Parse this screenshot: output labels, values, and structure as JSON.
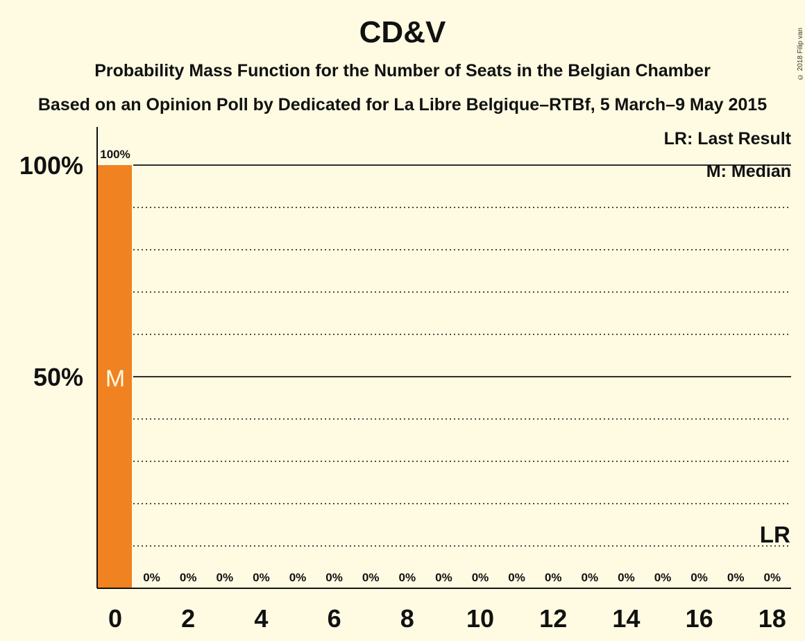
{
  "header": {
    "title": "CD&V",
    "subtitle1": "Probability Mass Function for the Number of Seats in the Belgian Chamber",
    "subtitle2": "Based on an Opinion Poll by Dedicated for La Libre Belgique–RTBf, 5 March–9 May 2015",
    "copyright": "© 2018 Filip van Laenen"
  },
  "legend": {
    "last_result": "LR: Last Result",
    "median": "M: Median"
  },
  "colors": {
    "bar": "#F08221",
    "background": "#FEFBE2"
  },
  "chart_data": {
    "type": "bar",
    "x": [
      0,
      1,
      2,
      3,
      4,
      5,
      6,
      7,
      8,
      9,
      10,
      11,
      12,
      13,
      14,
      15,
      16,
      17,
      18
    ],
    "values": [
      100,
      0,
      0,
      0,
      0,
      0,
      0,
      0,
      0,
      0,
      0,
      0,
      0,
      0,
      0,
      0,
      0,
      0,
      0
    ],
    "value_labels": [
      "100%",
      "0%",
      "0%",
      "0%",
      "0%",
      "0%",
      "0%",
      "0%",
      "0%",
      "0%",
      "0%",
      "0%",
      "0%",
      "0%",
      "0%",
      "0%",
      "0%",
      "0%",
      "0%"
    ],
    "x_tick_labels": [
      "0",
      "2",
      "4",
      "6",
      "8",
      "10",
      "12",
      "14",
      "16",
      "18"
    ],
    "x_ticks": [
      0,
      2,
      4,
      6,
      8,
      10,
      12,
      14,
      16,
      18
    ],
    "y_tick_labels": [
      "50%",
      "100%"
    ],
    "y_ticks": [
      50,
      100
    ],
    "ylim": [
      0,
      100
    ],
    "median": 0,
    "median_label": "M",
    "last_result": 18,
    "last_result_label": "LR",
    "grid_minor": [
      10,
      20,
      30,
      40,
      60,
      70,
      80,
      90
    ],
    "grid_major": [
      50,
      100
    ]
  }
}
